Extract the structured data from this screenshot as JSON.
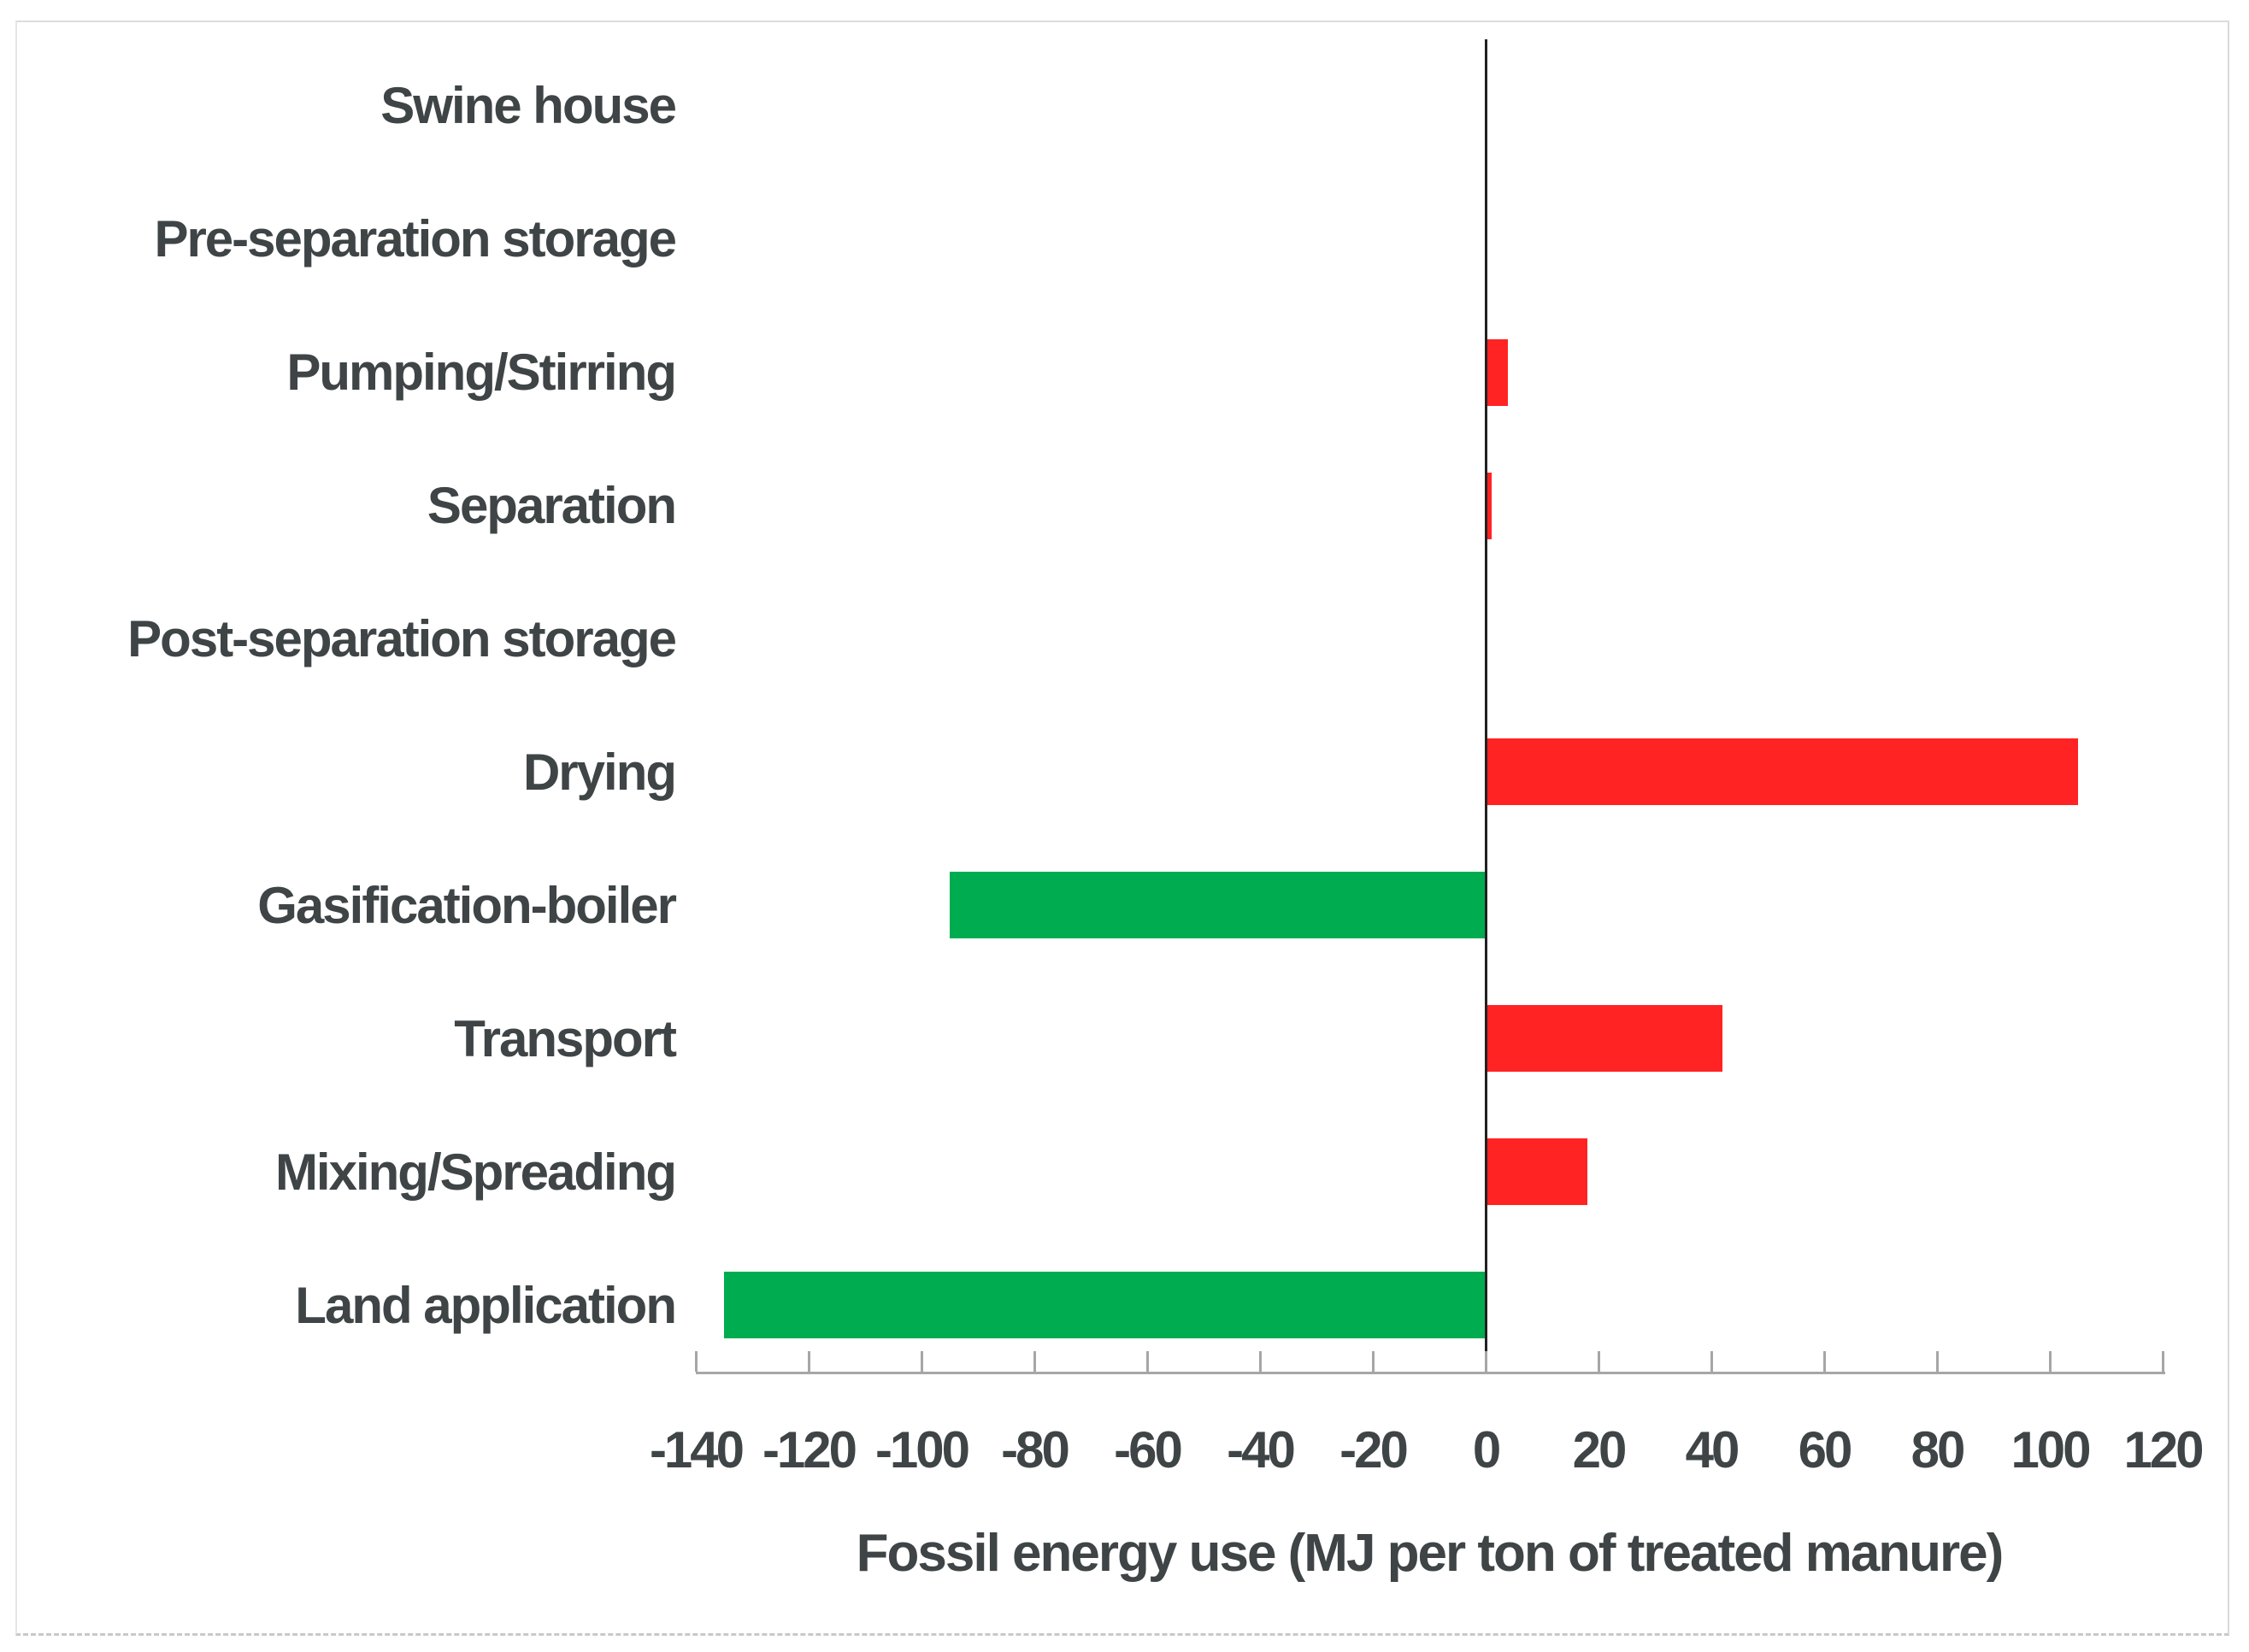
{
  "chart_data": {
    "type": "bar",
    "orientation": "horizontal",
    "title": "",
    "xlabel": "Fossil energy use (MJ per ton of treated manure)",
    "ylabel": "",
    "categories": [
      "Swine house",
      "Pre-separation storage",
      "Pumping/Stirring",
      "Separation",
      "Post-separation storage",
      "Drying",
      "Gasification-boiler",
      "Transport",
      "Mixing/Spreading",
      "Land application"
    ],
    "values": [
      0,
      0,
      4,
      1,
      0,
      105,
      -95,
      42,
      18,
      -135
    ],
    "xlim": [
      -140,
      120
    ],
    "x_ticks": [
      -140,
      -120,
      -100,
      -80,
      -60,
      -40,
      -20,
      0,
      20,
      40,
      60,
      80,
      100,
      120
    ],
    "grid": false,
    "legend": "none",
    "zero_line": true,
    "colors": {
      "positive_bar": "#ff2323",
      "negative_bar": "#00ac50",
      "axis_line": "#a6a6a6",
      "zero_line": "#212121",
      "text": "#3f4446"
    }
  }
}
